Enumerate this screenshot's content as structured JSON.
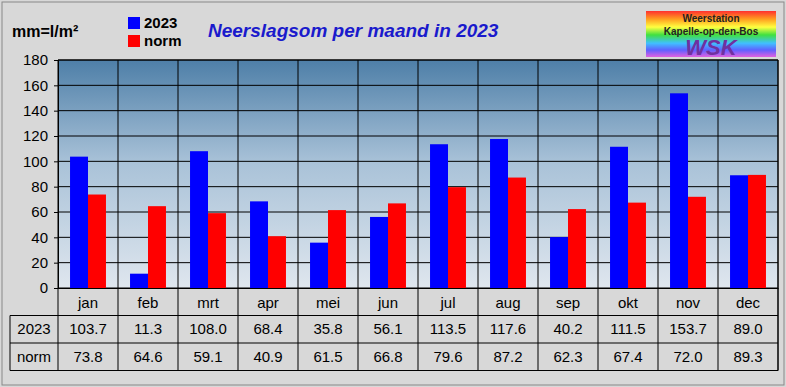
{
  "chart_data": {
    "type": "bar",
    "title": "Neerslagsom per maand in 2023",
    "y_label": "mm=l/m²",
    "categories": [
      "jan",
      "feb",
      "mrt",
      "apr",
      "mei",
      "jun",
      "jul",
      "aug",
      "sep",
      "okt",
      "nov",
      "dec"
    ],
    "series": [
      {
        "name": "2023",
        "color": "#0000ff",
        "values": [
          103.7,
          11.3,
          108.0,
          68.4,
          35.8,
          56.1,
          113.5,
          117.6,
          40.2,
          111.5,
          153.7,
          89.0
        ],
        "value_labels": [
          "103.7",
          "11.3",
          "108.0",
          "68.4",
          "35.8",
          "56.1",
          "113.5",
          "117.6",
          "40.2",
          "111.5",
          "153.7",
          "89.0"
        ]
      },
      {
        "name": "norm",
        "color": "#ff0000",
        "values": [
          73.8,
          64.6,
          59.1,
          40.9,
          61.5,
          66.8,
          79.6,
          87.2,
          62.3,
          67.4,
          72.0,
          89.3
        ],
        "value_labels": [
          "73.8",
          "64.6",
          "59.1",
          "40.9",
          "61.5",
          "66.8",
          "79.6",
          "87.2",
          "62.3",
          "67.4",
          "72.0",
          "89.3"
        ]
      }
    ],
    "ylim": [
      0,
      180
    ],
    "yticks": [
      0,
      20,
      40,
      60,
      80,
      100,
      120,
      140,
      160,
      180
    ],
    "grid": true,
    "legend": "upper left",
    "annotations": [
      "Weerstation",
      "Kapelle-op-den-Bos",
      "WSK"
    ]
  }
}
